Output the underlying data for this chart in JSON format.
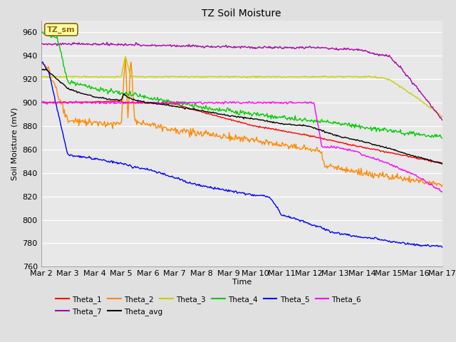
{
  "title": "TZ Soil Moisture",
  "ylabel": "Soil Moisture (mV)",
  "xlabel": "Time",
  "ylim": [
    760,
    970
  ],
  "xlim": [
    0,
    15
  ],
  "xtick_labels": [
    "Mar 2",
    "Mar 3",
    "Mar 4",
    "Mar 5",
    "Mar 6",
    "Mar 7",
    "Mar 8",
    "Mar 9",
    "Mar 10",
    "Mar 11",
    "Mar 12",
    "Mar 13",
    "Mar 14",
    "Mar 15",
    "Mar 16",
    "Mar 17"
  ],
  "ytick_vals": [
    760,
    780,
    800,
    820,
    840,
    860,
    880,
    900,
    920,
    940,
    960
  ],
  "bg_color": "#e0e0e0",
  "plot_bg": "#e8e8e8",
  "legend_items": [
    "Theta_1",
    "Theta_2",
    "Theta_3",
    "Theta_4",
    "Theta_5",
    "Theta_6",
    "Theta_7",
    "Theta_avg"
  ],
  "legend_colors": [
    "#ff0000",
    "#ff8800",
    "#cccc00",
    "#00cc00",
    "#0000ff",
    "#ff00ff",
    "#aa00aa",
    "#000000"
  ],
  "annotation_text": "TZ_sm",
  "annotation_color": "#996600",
  "annotation_bg": "#ffffaa"
}
